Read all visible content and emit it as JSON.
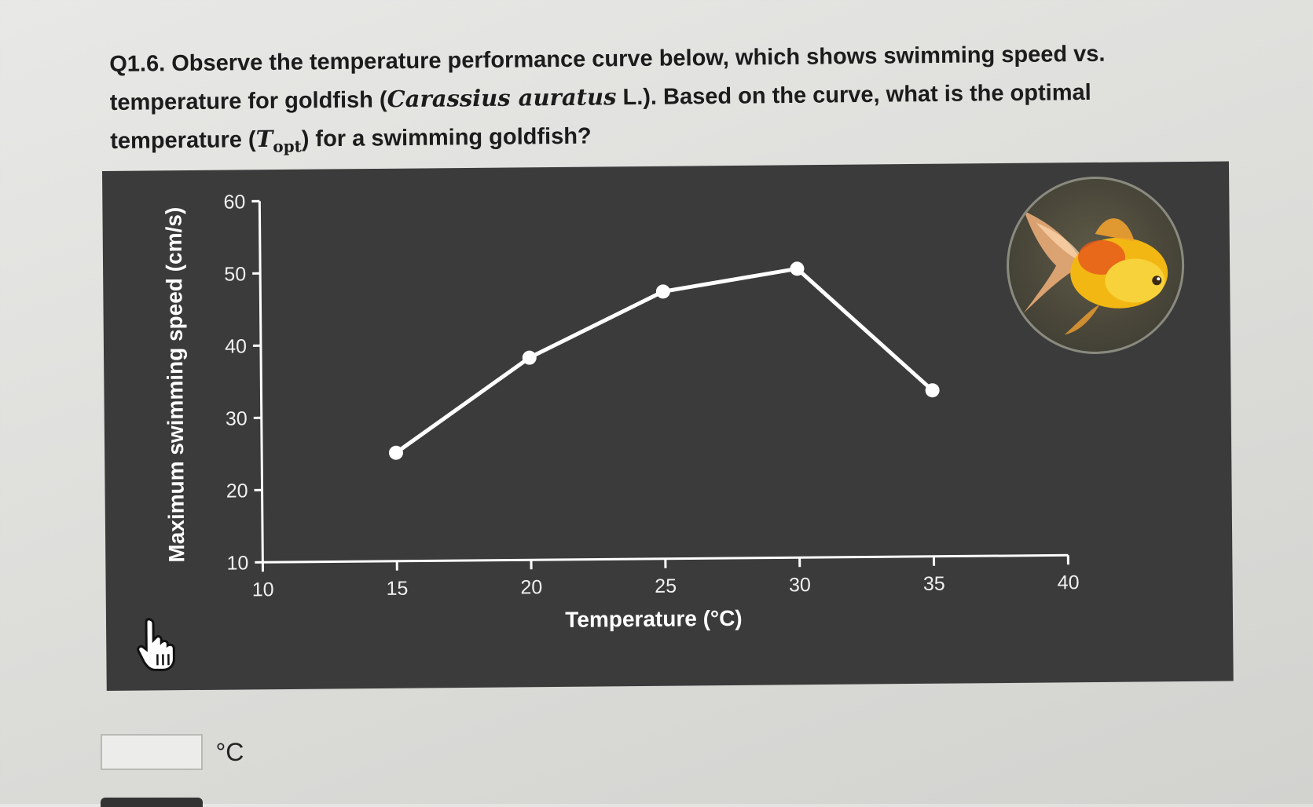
{
  "question": {
    "prefix": "Q1.6. Observe the temperature performance curve below, which shows swimming speed vs. temperature for goldfish (",
    "species": "Carassius auratus",
    "suffix_a": " L.). Based on the curve, what is the optimal temperature (",
    "symbol": "T",
    "subscript": "opt",
    "suffix_b": ") for a swimming goldfish?"
  },
  "answer": {
    "value": "",
    "unit": "°C"
  },
  "chart_data": {
    "type": "line",
    "xlabel": "Temperature (°C)",
    "ylabel": "Maximum swimming speed (cm/s)",
    "xlim": [
      10,
      40
    ],
    "ylim": [
      10,
      60
    ],
    "x_ticks": [
      10,
      15,
      20,
      25,
      30,
      35,
      40
    ],
    "y_ticks": [
      10,
      20,
      30,
      40,
      50,
      60
    ],
    "series": [
      {
        "x": [
          15,
          20,
          25,
          30,
          35
        ],
        "y": [
          25,
          38,
          47,
          50,
          33
        ]
      }
    ],
    "grid": false,
    "colors": {
      "background": "#3b3b3b",
      "line": "#ffffff"
    }
  },
  "image": {
    "icon": "goldfish-photo"
  }
}
